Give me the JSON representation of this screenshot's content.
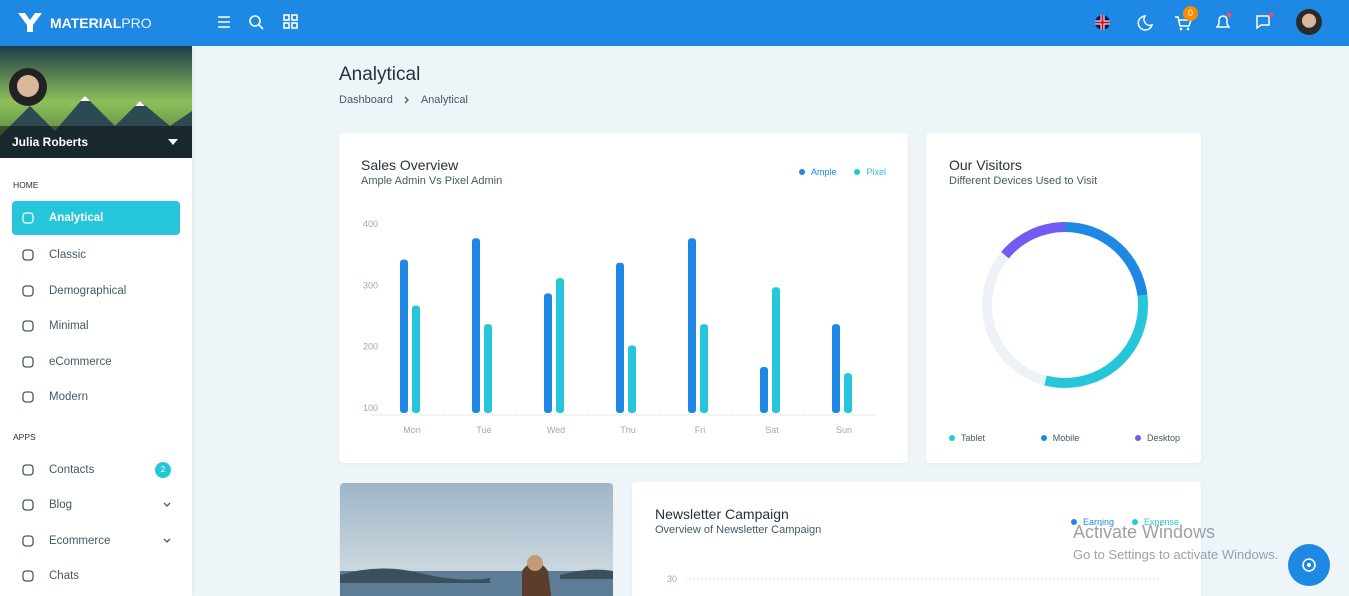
{
  "header": {
    "brand_bold": "MATERIAL",
    "brand_light": "PRO",
    "cart_badge": 0
  },
  "sidebar": {
    "user": "Julia Roberts",
    "sections": [
      {
        "label": "HOME",
        "items": [
          {
            "label": "Analytical",
            "active": true
          },
          {
            "label": "Classic"
          },
          {
            "label": "Demographical"
          },
          {
            "label": "Minimal"
          },
          {
            "label": "eCommerce"
          },
          {
            "label": "Modern"
          }
        ]
      },
      {
        "label": "APPS",
        "items": [
          {
            "label": "Contacts",
            "badge": 2
          },
          {
            "label": "Blog",
            "expandable": true
          },
          {
            "label": "Ecommerce",
            "expandable": true
          },
          {
            "label": "Chats"
          }
        ]
      }
    ]
  },
  "page": {
    "title": "Analytical",
    "breadcrumb": [
      "Dashboard",
      "Analytical"
    ]
  },
  "chart_data": [
    {
      "type": "bar",
      "title": "Sales Overview",
      "subtitle": "Ample Admin Vs Pixel Admin",
      "categories": [
        "Mon",
        "Tue",
        "Wed",
        "Thu",
        "Fri",
        "Sat",
        "Sun"
      ],
      "series": [
        {
          "name": "Ample",
          "color": "#1e88e5",
          "values": [
            350,
            385,
            295,
            345,
            385,
            175,
            245
          ]
        },
        {
          "name": "Pixel",
          "color": "#26c6da",
          "values": [
            275,
            245,
            320,
            210,
            245,
            305,
            165
          ]
        }
      ],
      "ylim": [
        100,
        400
      ],
      "yticks": [
        100,
        200,
        300,
        400
      ],
      "grid": false,
      "legend": "top-right"
    },
    {
      "type": "donut",
      "title": "Our Visitors",
      "subtitle": "Different Devices Used to Visit",
      "categories": [
        "Tablet",
        "Mobile",
        "Desktop"
      ],
      "values": [
        31,
        23,
        14
      ],
      "colors": [
        "#26c6da",
        "#1e88e5",
        "#745af2"
      ],
      "range": [
        0,
        100
      ],
      "legend": "bottom"
    },
    {
      "type": "line",
      "title": "Newsletter Campaign",
      "subtitle": "Overview of Newsletter Campaign",
      "series": [
        {
          "name": "Earning",
          "color": "#1e88e5"
        },
        {
          "name": "Expense",
          "color": "#26c6da"
        }
      ],
      "yticks": [
        30
      ],
      "grid": true,
      "legend": "top-right"
    }
  ],
  "watermark": {
    "title": "Activate Windows",
    "text": "Go to Settings to activate Windows."
  }
}
